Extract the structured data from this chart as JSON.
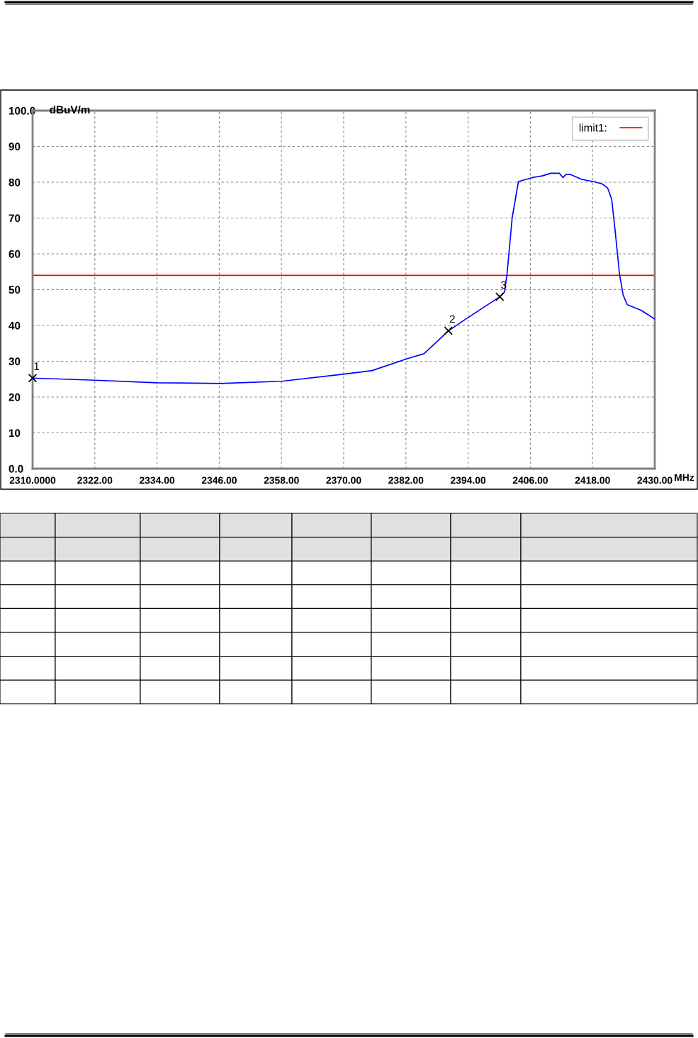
{
  "chart_data": {
    "type": "line",
    "ylabel": "dBuV/m",
    "xlabel": "MHz",
    "xlim": [
      2310,
      2430
    ],
    "ylim": [
      0,
      100
    ],
    "xticks": [
      {
        "value": 2310,
        "label": "2310.0000"
      },
      {
        "value": 2322,
        "label": "2322.00"
      },
      {
        "value": 2334,
        "label": "2334.00"
      },
      {
        "value": 2346,
        "label": "2346.00"
      },
      {
        "value": 2358,
        "label": "2358.00"
      },
      {
        "value": 2370,
        "label": "2370.00"
      },
      {
        "value": 2382,
        "label": "2382.00"
      },
      {
        "value": 2394,
        "label": "2394.00"
      },
      {
        "value": 2406,
        "label": "2406.00"
      },
      {
        "value": 2418,
        "label": "2418.00"
      },
      {
        "value": 2430,
        "label": "2430.00"
      }
    ],
    "yticks": [
      {
        "value": 0,
        "label": "0.0"
      },
      10,
      20,
      30,
      40,
      50,
      60,
      70,
      80,
      90,
      {
        "value": 100,
        "label": "100.0"
      }
    ],
    "grid": true,
    "legend": "top right",
    "line_style": "solid",
    "series": [
      {
        "color": "#0000ff",
        "marker": "none",
        "x": [
          2310,
          2322,
          2334,
          2346,
          2358,
          2369.5,
          2375.5,
          2382.2,
          2385.5,
          2390.2,
          2394.2,
          2400.1,
          2401,
          2401.5,
          2402.5,
          2403.7,
          2406.4,
          2408.4,
          2409.9,
          2411.6,
          2412.3,
          2412.9,
          2413.7,
          2415.9,
          2418.4,
          2419.9,
          2420.9,
          2421.7,
          2422.4,
          2423.2,
          2423.9,
          2424.7,
          2427.4,
          2430
        ],
        "values": [
          25.3,
          24.7,
          24.0,
          23.8,
          24.4,
          26.3,
          27.4,
          30.7,
          32.1,
          38.5,
          42.4,
          48.0,
          49.3,
          54.3,
          70.1,
          80.2,
          81.3,
          81.8,
          82.5,
          82.5,
          81.3,
          82.2,
          82.2,
          80.8,
          80.1,
          79.5,
          78.4,
          75.2,
          65.8,
          54.3,
          48.5,
          45.8,
          44.2,
          41.8
        ]
      },
      {
        "type": "scatter",
        "color": "#000000",
        "marker": "cross",
        "x": [
          2310,
          2390.2,
          2400.1
        ],
        "values": [
          25.3,
          38.5,
          48.0
        ]
      }
    ],
    "ref_lines": [
      {
        "axis": "y",
        "value": 54,
        "label": "limit1:",
        "color": "#ff0000",
        "line_style": "solid"
      }
    ],
    "annotations": [
      {
        "text": "1",
        "x": 2310,
        "y": 25.3
      },
      {
        "text": "2",
        "x": 2390.2,
        "y": 38.5
      },
      {
        "text": "3",
        "x": 2400.1,
        "y": 48.0
      }
    ]
  }
}
